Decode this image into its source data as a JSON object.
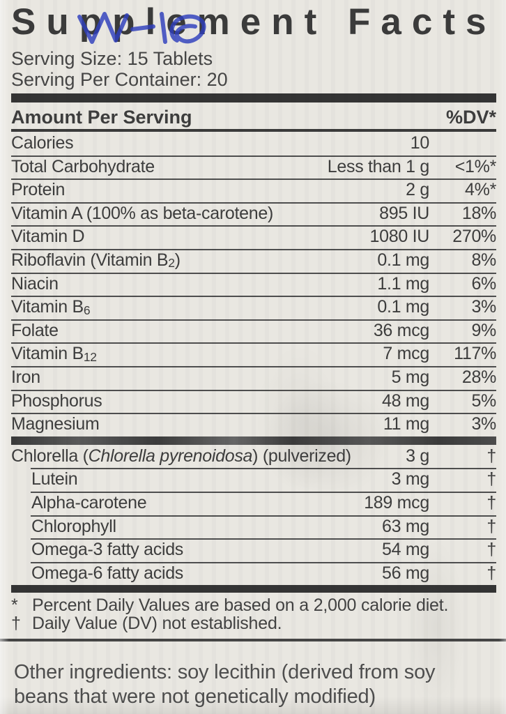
{
  "colors": {
    "bg": "#e9e7e1",
    "ink": "#3d3d3d",
    "rule": "#4e4e4e",
    "bar": "#343434",
    "scribble": "#2f3fbe"
  },
  "header": {
    "title": "Supplement Facts"
  },
  "serving_info": {
    "line1": "Serving Size: 15 Tablets",
    "line2": "Serving Per Container: 20"
  },
  "table": {
    "amount_header": "Amount Per Serving",
    "dv_header": "%DV*",
    "main_rows": [
      {
        "name": [
          {
            "t": "Calories"
          }
        ],
        "amount": "10",
        "dv": ""
      },
      {
        "name": [
          {
            "t": "Total Carbohydrate"
          }
        ],
        "amount": "Less than 1 g",
        "dv": "<1%*"
      },
      {
        "name": [
          {
            "t": "Protein"
          }
        ],
        "amount": "2 g",
        "dv": "4%*"
      },
      {
        "name": [
          {
            "t": "Vitamin A (100% as beta-carotene)"
          }
        ],
        "amount": "895 IU",
        "dv": "18%"
      },
      {
        "name": [
          {
            "t": "Vitamin D"
          }
        ],
        "amount": "1080 IU",
        "dv": "270%"
      },
      {
        "name": [
          {
            "t": "Riboflavin (Vitamin B"
          },
          {
            "t": "2",
            "sub": true
          },
          {
            "t": ")"
          }
        ],
        "amount": "0.1 mg",
        "dv": "8%"
      },
      {
        "name": [
          {
            "t": "Niacin"
          }
        ],
        "amount": "1.1 mg",
        "dv": "6%"
      },
      {
        "name": [
          {
            "t": "Vitamin B"
          },
          {
            "t": "6",
            "sub": true
          }
        ],
        "amount": "0.1 mg",
        "dv": "3%"
      },
      {
        "name": [
          {
            "t": "Folate"
          }
        ],
        "amount": "36 mcg",
        "dv": "9%"
      },
      {
        "name": [
          {
            "t": "Vitamin B"
          },
          {
            "t": "12",
            "sub": true
          }
        ],
        "amount": "7 mcg",
        "dv": "117%"
      },
      {
        "name": [
          {
            "t": "Iron"
          }
        ],
        "amount": "5 mg",
        "dv": "28%"
      },
      {
        "name": [
          {
            "t": "Phosphorus"
          }
        ],
        "amount": "48 mg",
        "dv": "5%"
      },
      {
        "name": [
          {
            "t": "Magnesium"
          }
        ],
        "amount": "11 mg",
        "dv": "3%"
      }
    ],
    "botanical_rows": [
      {
        "name": [
          {
            "t": "Chlorella ("
          },
          {
            "t": "Chlorella pyrenoidosa",
            "italic": true
          },
          {
            "t": ") (pulverized)"
          }
        ],
        "amount": "3 g",
        "dv": "†"
      },
      {
        "name": [
          {
            "t": "Lutein"
          }
        ],
        "amount": "3 mg",
        "dv": "†",
        "indent": true
      },
      {
        "name": [
          {
            "t": "Alpha-carotene"
          }
        ],
        "amount": "189 mcg",
        "dv": "†",
        "indent": true
      },
      {
        "name": [
          {
            "t": "Chlorophyll"
          }
        ],
        "amount": "63 mg",
        "dv": "†",
        "indent": true
      },
      {
        "name": [
          {
            "t": "Omega-3 fatty acids"
          }
        ],
        "amount": "54 mg",
        "dv": "†",
        "indent": true
      },
      {
        "name": [
          {
            "t": "Omega-6 fatty acids"
          }
        ],
        "amount": "56 mg",
        "dv": "†",
        "indent": true
      }
    ]
  },
  "footnotes": [
    {
      "symbol": "*",
      "text": "Percent Daily Values are based on a 2,000 calorie diet."
    },
    {
      "symbol": "†",
      "text": "Daily Value (DV) not established."
    }
  ],
  "other_ingredients": "Other ingredients: soy lecithin (derived from soy beans that were not genetically modified)"
}
